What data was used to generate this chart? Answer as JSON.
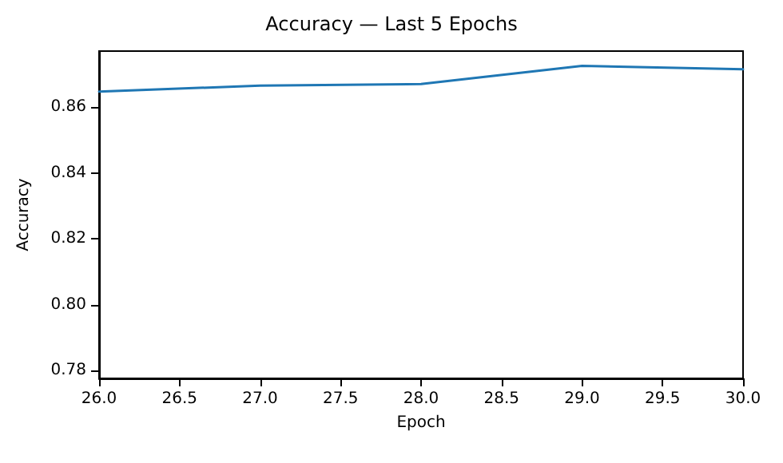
{
  "chart_data": {
    "type": "line",
    "title": "Accuracy — Last 5 Epochs",
    "xlabel": "Epoch",
    "ylabel": "Accuracy",
    "x": [
      26,
      27,
      28,
      29,
      30
    ],
    "series": [
      {
        "color": "#1f77b4",
        "values": [
          0.8647,
          0.8665,
          0.867,
          0.8725,
          0.8715
        ]
      }
    ],
    "xlim": [
      26,
      30
    ],
    "xticks": [
      {
        "value": 26,
        "label": "26.0"
      },
      {
        "value": 26.5,
        "label": "26.5"
      },
      {
        "value": 27,
        "label": "27.0"
      },
      {
        "value": 27.5,
        "label": "27.5"
      },
      {
        "value": 28,
        "label": "28.0"
      },
      {
        "value": 28.5,
        "label": "28.5"
      },
      {
        "value": 29,
        "label": "29.0"
      },
      {
        "value": 29.5,
        "label": "29.5"
      },
      {
        "value": 30,
        "label": "30.0"
      }
    ],
    "ylim": [
      0.7776,
      0.877
    ],
    "yticks": [
      {
        "value": 0.78,
        "label": "0.78"
      },
      {
        "value": 0.8,
        "label": "0.80"
      },
      {
        "value": 0.82,
        "label": "0.82"
      },
      {
        "value": 0.84,
        "label": "0.84"
      },
      {
        "value": 0.86,
        "label": "0.86"
      }
    ],
    "grid": false,
    "marker": "none",
    "line_style": "solid"
  }
}
